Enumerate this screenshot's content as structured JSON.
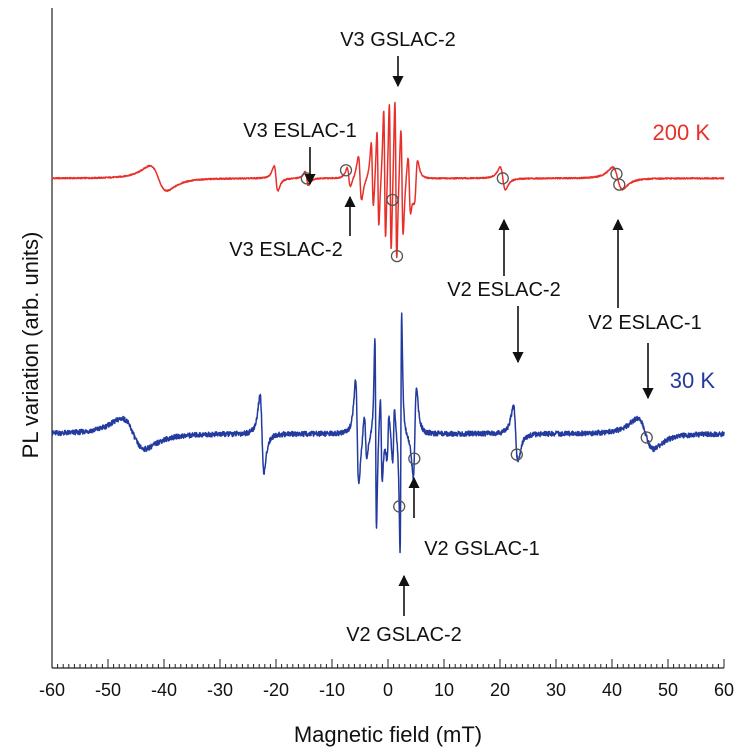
{
  "chart_data": {
    "type": "line",
    "xlabel": "Magnetic field (mT)",
    "ylabel": "PL variation (arb. units)",
    "xlim": [
      -60,
      60
    ],
    "xticks": [
      -60,
      -50,
      -40,
      -30,
      -20,
      -10,
      0,
      10,
      20,
      30,
      40,
      50,
      60
    ],
    "grid": false,
    "legend": "none",
    "series": [
      {
        "name": "200 K",
        "color": "#e8302a",
        "baseline": 0.0,
        "features": [
          {
            "x": -41.0,
            "amp": 0.45,
            "w": 2.6
          },
          {
            "x": -20.0,
            "amp": 0.45,
            "w": 0.6
          },
          {
            "x": -14.5,
            "amp": 0.25,
            "w": 0.5
          },
          {
            "x": -7.0,
            "amp": 0.35,
            "w": 0.5
          },
          {
            "x": -5.0,
            "amp": 0.8,
            "w": 0.5
          },
          {
            "x": -2.8,
            "amp": 1.2,
            "w": 0.35
          },
          {
            "x": -1.8,
            "amp": 1.8,
            "w": 0.3
          },
          {
            "x": -0.6,
            "amp": 2.4,
            "w": 0.3
          },
          {
            "x": 0.4,
            "amp": 2.8,
            "w": 0.3
          },
          {
            "x": 1.4,
            "amp": 3.0,
            "w": 0.3
          },
          {
            "x": 2.5,
            "amp": 2.0,
            "w": 0.35
          },
          {
            "x": 3.8,
            "amp": 1.0,
            "w": 0.4
          },
          {
            "x": 5.0,
            "amp": -0.7,
            "w": 0.5
          },
          {
            "x": 20.5,
            "amp": 0.4,
            "w": 0.8
          },
          {
            "x": 41.0,
            "amp": 0.4,
            "w": 1.5
          }
        ],
        "markers": [
          -14.5,
          -7.5,
          0.8,
          1.6,
          20.5,
          40.8,
          41.3
        ]
      },
      {
        "name": "30 K",
        "color": "#233a9e",
        "baseline": -6.0,
        "features": [
          {
            "x": -45.5,
            "amp": 0.55,
            "w": 3.5
          },
          {
            "x": -22.5,
            "amp": 1.4,
            "w": 0.6
          },
          {
            "x": -5.5,
            "amp": 1.9,
            "w": 0.5
          },
          {
            "x": -4.0,
            "amp": 0.8,
            "w": 0.4
          },
          {
            "x": -2.2,
            "amp": 3.5,
            "w": 0.25
          },
          {
            "x": -1.2,
            "amp": 1.5,
            "w": 0.3
          },
          {
            "x": 0.0,
            "amp": -0.8,
            "w": 0.3
          },
          {
            "x": 1.0,
            "amp": -1.0,
            "w": 0.3
          },
          {
            "x": 2.3,
            "amp": -4.3,
            "w": 0.25
          },
          {
            "x": 4.8,
            "amp": -1.6,
            "w": 0.5
          },
          {
            "x": 22.8,
            "amp": 1.0,
            "w": 0.7
          },
          {
            "x": 46.0,
            "amp": 0.55,
            "w": 2.5
          }
        ],
        "markers": [
          2.0,
          4.7,
          23.0,
          46.2
        ]
      }
    ],
    "temperature_labels": [
      {
        "text": "200 K",
        "series": 0
      },
      {
        "text": "30 K",
        "series": 1
      }
    ],
    "annotations": [
      {
        "text": "V3 GSLAC-2",
        "x": 0.8
      },
      {
        "text": "V3 ESLAC-1",
        "x": -14.5
      },
      {
        "text": "V3 ESLAC-2",
        "x": -7.5
      },
      {
        "text": "V2 ESLAC-2",
        "x": 22.5
      },
      {
        "text": "V2 ESLAC-1",
        "x": 46.0
      },
      {
        "text": "V2 GSLAC-1",
        "x": 4.7
      },
      {
        "text": "V2 GSLAC-2",
        "x": 2.2
      }
    ]
  }
}
